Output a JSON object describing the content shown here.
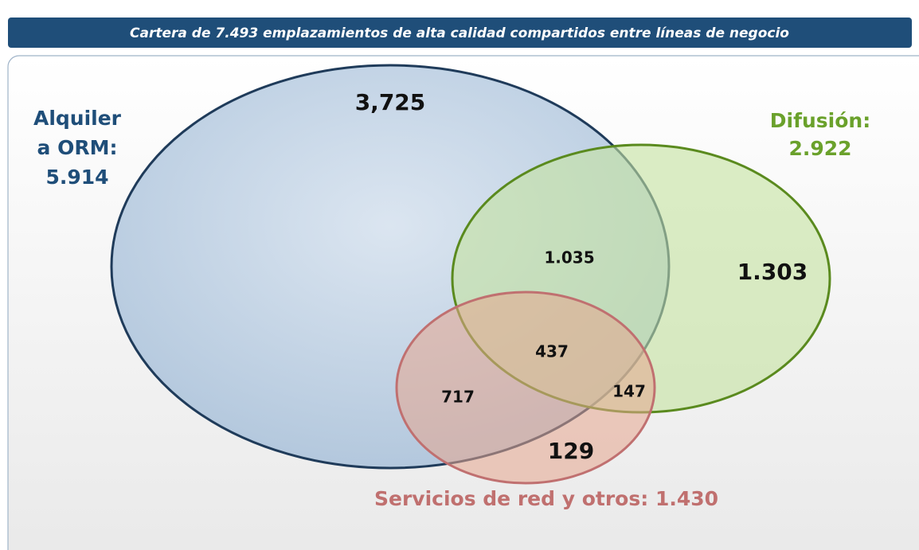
{
  "header": {
    "title": "Cartera de 7.493 emplazamientos de alta calidad compartidos entre líneas de negocio"
  },
  "sets": [
    {
      "label_lines": [
        "Alquiler",
        "a ORM:",
        "5.914"
      ]
    },
    {
      "label_lines": [
        "Difusión:",
        "2.922"
      ]
    },
    {
      "label_lines": [
        "Servicios de red y otros: 1.430"
      ]
    }
  ],
  "regions": {
    "orm_only": "3,725",
    "orm_difusion": "1.035",
    "difusion_only": "1.303",
    "all_three": "437",
    "orm_servicios": "717",
    "difusion_servicios": "147",
    "servicios_only": "129"
  }
}
